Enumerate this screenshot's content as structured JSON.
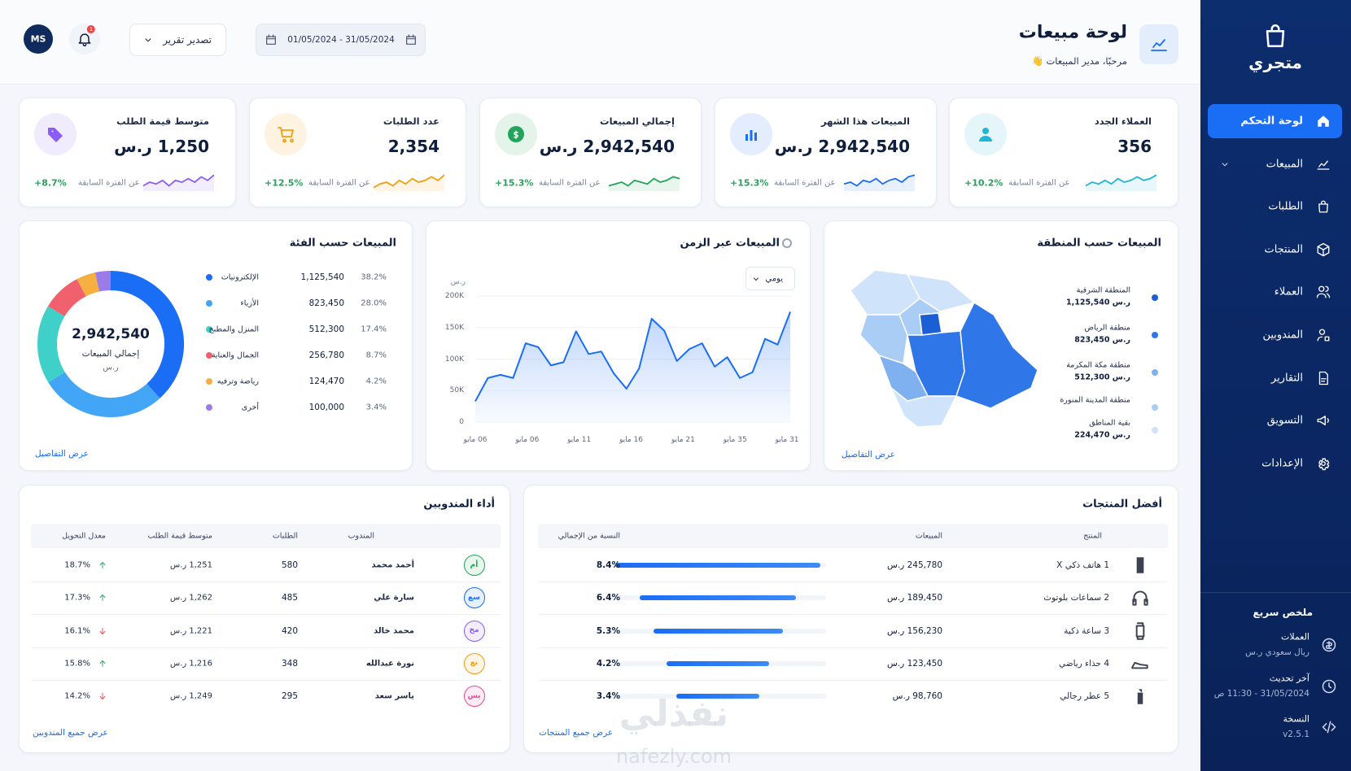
{
  "sidebar": {
    "brand": "متجري",
    "nav": [
      {
        "label": "لوحة التحكم",
        "active": true
      },
      {
        "label": "المبيعات",
        "expandable": true
      },
      {
        "label": "الطلبات"
      },
      {
        "label": "المنتجات"
      },
      {
        "label": "العملاء"
      },
      {
        "label": "المندوبين"
      },
      {
        "label": "التقارير"
      },
      {
        "label": "التسويق"
      },
      {
        "label": "الإعدادات"
      }
    ],
    "summary": {
      "title": "ملخص سريع",
      "items": [
        {
          "label": "العملات",
          "value": "ريال سعودي ر.س"
        },
        {
          "label": "آخر تحديث",
          "value": "31/05/2024 - 11:30 ص"
        },
        {
          "label": "النسخة",
          "value": "v2.5.1"
        }
      ]
    }
  },
  "header": {
    "title": "لوحة مبيعات",
    "subtitle": "مرحبًا، مدير المبيعات 👋",
    "date_range": "01/05/2024 - 31/05/2024",
    "export_button": "تصدير تقرير",
    "notifications": "1",
    "avatar": "MS"
  },
  "kpis": [
    {
      "label": "العملاء الجدد",
      "value": "356",
      "change": "+10.2%",
      "change_note": "عن الفترة السابقة",
      "color": "#1fb5d6",
      "trend": [
        3,
        5,
        4,
        6,
        4,
        7,
        5,
        6,
        8,
        6,
        7,
        9
      ],
      "ylim": [
        0,
        10
      ]
    },
    {
      "label": "المبيعات هذا الشهر",
      "value": "2,942,540 ر.س",
      "change": "+15.3%",
      "change_note": "عن الفترة السابقة",
      "color": "#1a6df5",
      "trend": [
        4,
        5,
        3,
        6,
        5,
        7,
        4,
        6,
        7,
        5,
        8,
        9
      ],
      "ylim": [
        0,
        10
      ]
    },
    {
      "label": "إجمالي المبيعات",
      "value": "2,942,540 ر.س",
      "change": "+15.3%",
      "change_note": "عن الفترة السابقة",
      "color": "#22a55a",
      "trend": [
        3,
        4,
        5,
        3,
        6,
        5,
        4,
        7,
        5,
        6,
        8,
        7
      ],
      "ylim": [
        0,
        10
      ]
    },
    {
      "label": "عدد الطلبات",
      "value": "2,354",
      "change": "+12.5%",
      "change_note": "عن الفترة السابقة",
      "color": "#f59e0b",
      "trend": [
        2,
        4,
        5,
        3,
        6,
        4,
        7,
        5,
        6,
        8,
        6,
        9
      ],
      "ylim": [
        0,
        10
      ]
    },
    {
      "label": "متوسط قيمة الطلب",
      "value": "1,250 ر.س",
      "change": "+8.7%",
      "change_note": "عن الفترة السابقة",
      "color": "#8b5cf6",
      "trend": [
        3,
        5,
        4,
        6,
        3,
        6,
        5,
        7,
        5,
        8,
        6,
        9
      ],
      "ylim": [
        0,
        10
      ]
    }
  ],
  "region_sales": {
    "title": "المبيعات حسب المنطقة",
    "regions": [
      {
        "name": "المنطقة الشرقية",
        "value": "ر.س 1,125,540",
        "color": "#1a5fd6"
      },
      {
        "name": "منطقة الرياض",
        "value": "ر.س 823,450",
        "color": "#2f76e8"
      },
      {
        "name": "منطقة مكة المكرمة",
        "value": "ر.س 512,300",
        "color": "#7fb0f0"
      },
      {
        "name": "منطقة المدينة المنورة",
        "color": "#a9cdf5"
      },
      {
        "name": "بقية المناطق",
        "value": "ر.س 224,470",
        "color": "#cfe3fa"
      }
    ],
    "link": "عرض التفاصيل"
  },
  "sales_over_time": {
    "type": "line",
    "title": "المبيعات عبر الزمن",
    "period": "يومي",
    "y_unit": "ر.س",
    "color": "#1a6df5",
    "values": [
      33000,
      70000,
      75000,
      70000,
      125000,
      119000,
      90000,
      95000,
      144000,
      108000,
      112000,
      77000,
      53000,
      85000,
      164000,
      145000,
      97000,
      116000,
      125000,
      88000,
      103000,
      70000,
      79000,
      132000,
      123000,
      175000
    ],
    "x_labels": [
      "06 مايو",
      "06 مايو",
      "11 مايو",
      "16 مايو",
      "21 مايو",
      "35 مايو",
      "31 مايو"
    ],
    "ylim": [
      0,
      200000
    ],
    "yticks": [
      0,
      {
        "value": 50000,
        "label": "50K"
      },
      {
        "value": 100000,
        "label": "100K"
      },
      {
        "value": 150000,
        "label": "150K"
      },
      {
        "value": 200000,
        "label": "200K"
      }
    ],
    "grid": true
  },
  "sales_by_category": {
    "type": "pie",
    "title": "المبيعات حسب الفئة",
    "total": "2,942,540",
    "total_label": "إجمالي المبيعات",
    "unit": "ر.س",
    "categories": [
      "الإلكترونيات",
      "الأزياء",
      "المنزل والمطبخ",
      "الجمال والعناية",
      "رياضة وترفيه",
      "أخرى"
    ],
    "values": [
      1125540,
      823450,
      512300,
      256780,
      124470,
      100000
    ],
    "value_labels": [
      "1,125,540",
      "823,450",
      "512,300",
      "256,780",
      "124,470",
      "100,000"
    ],
    "shares": [
      "38.2%",
      "28.0%",
      "17.4%",
      "8.7%",
      "4.2%",
      "3.4%"
    ],
    "colors": [
      "#1a6df5",
      "#42a5f5",
      "#3fd0c9",
      "#f0616d",
      "#f5b041",
      "#9b7be8"
    ],
    "link": "عرض التفاصيل"
  },
  "top_products": {
    "title": "أفضل المنتجات",
    "columns": [
      "المنتج",
      "المبيعات",
      "النسبة من الإجمالي"
    ],
    "rows": [
      {
        "rank": "1",
        "name": "هاتف ذكي X",
        "sales": "245,780 ر.س",
        "share": 8.4,
        "share_label": "8.4%"
      },
      {
        "rank": "2",
        "name": "سماعات بلوتوث",
        "sales": "189,450 ر.س",
        "share": 6.4,
        "share_label": "6.4%"
      },
      {
        "rank": "3",
        "name": "ساعة ذكية",
        "sales": "156,230 ر.س",
        "share": 5.3,
        "share_label": "5.3%"
      },
      {
        "rank": "4",
        "name": "حذاء رياضي",
        "sales": "123,450 ر.س",
        "share": 4.2,
        "share_label": "4.2%"
      },
      {
        "rank": "5",
        "name": "عطر رجالي",
        "sales": "98,760 ر.س",
        "share": 3.4,
        "share_label": "3.4%"
      }
    ],
    "link": "عرض جميع المنتجات"
  },
  "rep_performance": {
    "title": "أداء المندوبين",
    "columns": [
      "المندوب",
      "الطلبات",
      "متوسط قيمة الطلب",
      "معدل التحويل"
    ],
    "rows": [
      {
        "initials": "أم",
        "name": "أحمد محمد",
        "orders": "580",
        "avg_order": "1,251 ر.س",
        "conversion": "18.7%",
        "trend": "up",
        "color": "#22a55a"
      },
      {
        "initials": "سع",
        "name": "سارة علي",
        "orders": "485",
        "avg_order": "1,262 ر.س",
        "conversion": "17.3%",
        "trend": "up",
        "color": "#1a6df5"
      },
      {
        "initials": "مخ",
        "name": "محمد خالد",
        "orders": "420",
        "avg_order": "1,221 ر.س",
        "conversion": "16.1%",
        "trend": "down",
        "color": "#8b5cf6"
      },
      {
        "initials": "نع",
        "name": "نورة عبدالله",
        "orders": "348",
        "avg_order": "1,216 ر.س",
        "conversion": "15.8%",
        "trend": "up",
        "color": "#f59e0b"
      },
      {
        "initials": "يس",
        "name": "ياسر سعد",
        "orders": "295",
        "avg_order": "1,249 ر.س",
        "conversion": "14.2%",
        "trend": "down",
        "color": "#ec4899"
      }
    ],
    "link": "عرض جميع المندوبين"
  },
  "watermark": {
    "ar": "نفذلي",
    "en": "nafezly.com"
  }
}
